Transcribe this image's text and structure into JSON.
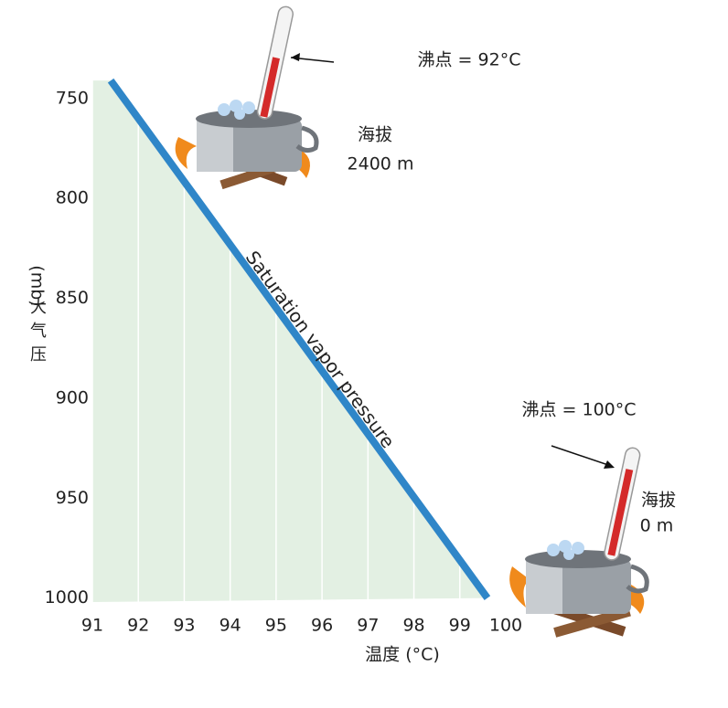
{
  "chart_data": {
    "type": "line",
    "x_label": "温度 (°C)",
    "y_label": "大气压",
    "y_unit": "(mb)",
    "series": [
      {
        "name": "Saturation vapor pressure",
        "color": "#2f86c8",
        "x": [
          91.4,
          99.6
        ],
        "values": [
          741,
          1000
        ]
      }
    ],
    "xlim": [
      91,
      100
    ],
    "xticks": [
      91,
      92,
      93,
      94,
      95,
      96,
      97,
      98,
      99,
      100
    ],
    "ylim": [
      740,
      1002
    ],
    "yticks": [
      750,
      800,
      850,
      900,
      950,
      1000
    ],
    "y_inverted": true,
    "fill_color": "#e3f0e3",
    "grid": true,
    "annotations": [
      "沸点 = 92°C",
      "海拔",
      "2400 m",
      "沸点 = 100°C",
      "海拔",
      "0 m"
    ]
  }
}
